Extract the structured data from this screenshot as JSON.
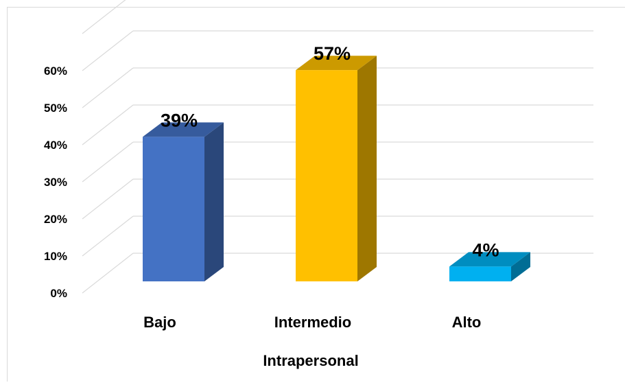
{
  "chart_data": {
    "type": "bar",
    "style": "3d-column",
    "categories": [
      "Bajo",
      "Intermedio",
      "Alto"
    ],
    "values": [
      39,
      57,
      4
    ],
    "data_labels": [
      "39%",
      "57%",
      "4%"
    ],
    "colors": [
      "#4472C4",
      "#FFC000",
      "#00B0F0"
    ],
    "xlabel": "Intrapersonal",
    "ylabel": "",
    "ylim": [
      0,
      60
    ],
    "yticks": [
      0,
      10,
      20,
      30,
      40,
      50,
      60
    ],
    "ytick_labels": [
      "0%",
      "10%",
      "20%",
      "30%",
      "40%",
      "50%",
      "60%"
    ],
    "grid": true,
    "legend": false
  }
}
